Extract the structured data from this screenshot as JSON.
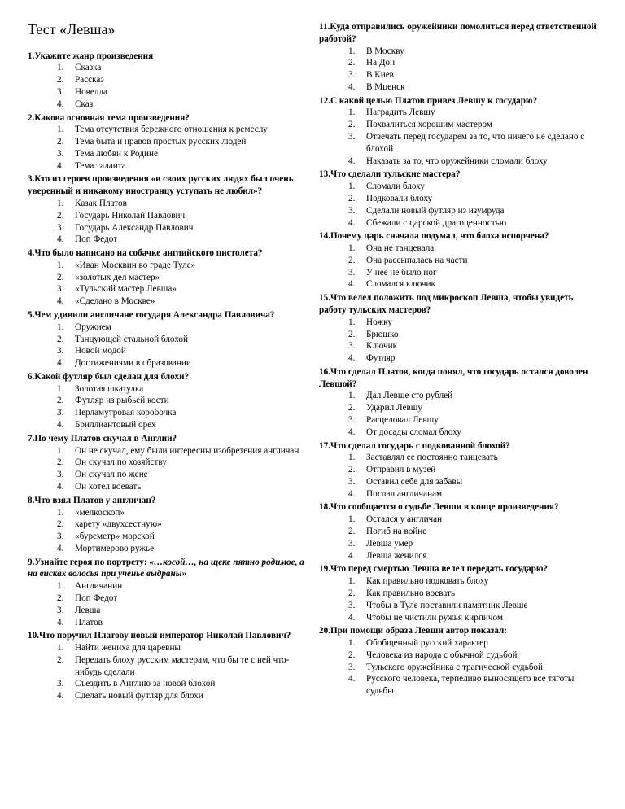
{
  "title": "Тест «Левша»",
  "q1": {
    "t": "1.Укажите жанр произведения",
    "o": [
      "Сказка",
      "Рассказ",
      "Новелла",
      "Сказ"
    ]
  },
  "q2": {
    "t": "2.Какова основная тема произведения?",
    "o": [
      "Тема отсутствия бережного отношения к ремеслу",
      "Тема быта и нравов простых русских людей",
      "Тема любви к Родине",
      "Тема таланта"
    ]
  },
  "q3": {
    "t": "3.Кто из героев произведения «в своих русских людях был очень уверенный и никакому иностранцу уступать не любил»?",
    "o": [
      "Казак Платов",
      "Государь Николай Павлович",
      "Государь Александр Павлович",
      "Поп Федот"
    ]
  },
  "q4": {
    "t": "4.Что было написано на собачке английского пистолета?",
    "o": [
      "«Иван Москвин во граде Туле»",
      "«золотых дел мастер»",
      "«Тульский мастер Левша»",
      "«Сделано в Москве»"
    ]
  },
  "q5": {
    "t": "5.Чем удивили англичане государя Александра Павловича?",
    "o": [
      "Оружием",
      "Танцующей стальной блохой",
      "Новой модой",
      "Достижениями в образовании"
    ]
  },
  "q6": {
    "t": "6.Какой футляр был сделан для блохи?",
    "o": [
      "Золотая шкатулка",
      "Футляр из рыбьей кости",
      "Перламутровая коробочка",
      "Бриллиантовый орех"
    ]
  },
  "q7": {
    "t": "7.По чему Платов скучал в Англии?",
    "o": [
      "Он не скучал, ему были интересны изобретения англичан",
      "Он скучал по хозяйству",
      "Он скучал по жене",
      "Он хотел воевать"
    ]
  },
  "q8": {
    "t": "8.Что взял Платов у англичан?",
    "o": [
      "«мелкоскоп»",
      "карету «двухсестную»",
      "«буреметр» морской",
      "Мортимерово ружье"
    ]
  },
  "q9": {
    "t": "9.Узнайте героя по портрету: «…косой…, на щеке пятно родимое, а на висках волосья при ученье выдраны»",
    "em": true,
    "o": [
      "Англичанин",
      "Поп Федот",
      "Левша",
      "Платов"
    ]
  },
  "q10": {
    "t": "10.Что поручил Платову новый император Николай Павлович?",
    "o": [
      "Найти жениха для царевны",
      "Передать блоху русским мастерам, что бы те с ней что-нибудь сделали",
      "Съездить в Англию за новой блохой",
      "Сделать новый футляр для блохи"
    ]
  },
  "q11": {
    "t": "11.Куда отправились оружейники помолиться перед ответственной работой?",
    "o": [
      "В Москву",
      "На Дон",
      "В Киев",
      "В Мценск"
    ]
  },
  "q12": {
    "t": "12.С какой целью Платов привез Левшу к государю?",
    "o": [
      "Наградить Левшу",
      "Похвалиться хорошим мастером",
      "Отвечать перед государем за то, что ничего не сделано с блохой",
      "Наказать за то, что оружейники сломали блоху"
    ]
  },
  "q13": {
    "t": "13.Что сделали тульские мастера?",
    "o": [
      "Сломали блоху",
      "Подковали блоху",
      "Сделали новый футляр из изумруда",
      "Сбежали с царской драгоценностью"
    ]
  },
  "q14": {
    "t": "14.Почему царь сначала подумал, что блоха испорчена?",
    "o": [
      "Она не танцевала",
      "Она рассыпалась на части",
      "У нее не было ног",
      "Сломался ключик"
    ]
  },
  "q15": {
    "t": "15.Что велел положить под микроскоп Левша, чтобы увидеть работу тульских мастеров?",
    "o": [
      "Ножку",
      "Брюшко",
      "Ключик",
      "Футляр"
    ]
  },
  "q16": {
    "t": "16.Что сделал Платов, когда понял, что государь остался доволен Левшой?",
    "o": [
      "Дал Левше сто рублей",
      "Ударил Левшу",
      "Расцеловал Левшу",
      "От досады сломал блоху"
    ]
  },
  "q17": {
    "t": "17.Что сделал государь с подкованной блохой?",
    "o": [
      "Заставлял ее постоянно танцевать",
      "Отправил в музей",
      "Оставил себе для забавы",
      "Послал англичанам"
    ]
  },
  "q18": {
    "t": "18.Что сообщается о судьбе Левши в конце произведения?",
    "o": [
      "Остался у англичан",
      "Погиб на войне",
      "Левша умер",
      "Левша женился"
    ]
  },
  "q19": {
    "t": "19.Что перед смертью Левша велел передать государю?",
    "o": [
      "Как правильно подковать блоху",
      "Как правильно воевать",
      "Чтобы в Туле поставили памятник Левше",
      "Чтобы не чистили ружья кирпичом"
    ]
  },
  "q20": {
    "t": "20.При помощи образа Левши автор показал:",
    "o": [
      "Обобщенный русский характер",
      "Человека из народа с обычной судьбой",
      "Тульского оружейника с трагической судьбой",
      "Русского человека, терпеливо выносящего все тяготы судьбы"
    ]
  }
}
